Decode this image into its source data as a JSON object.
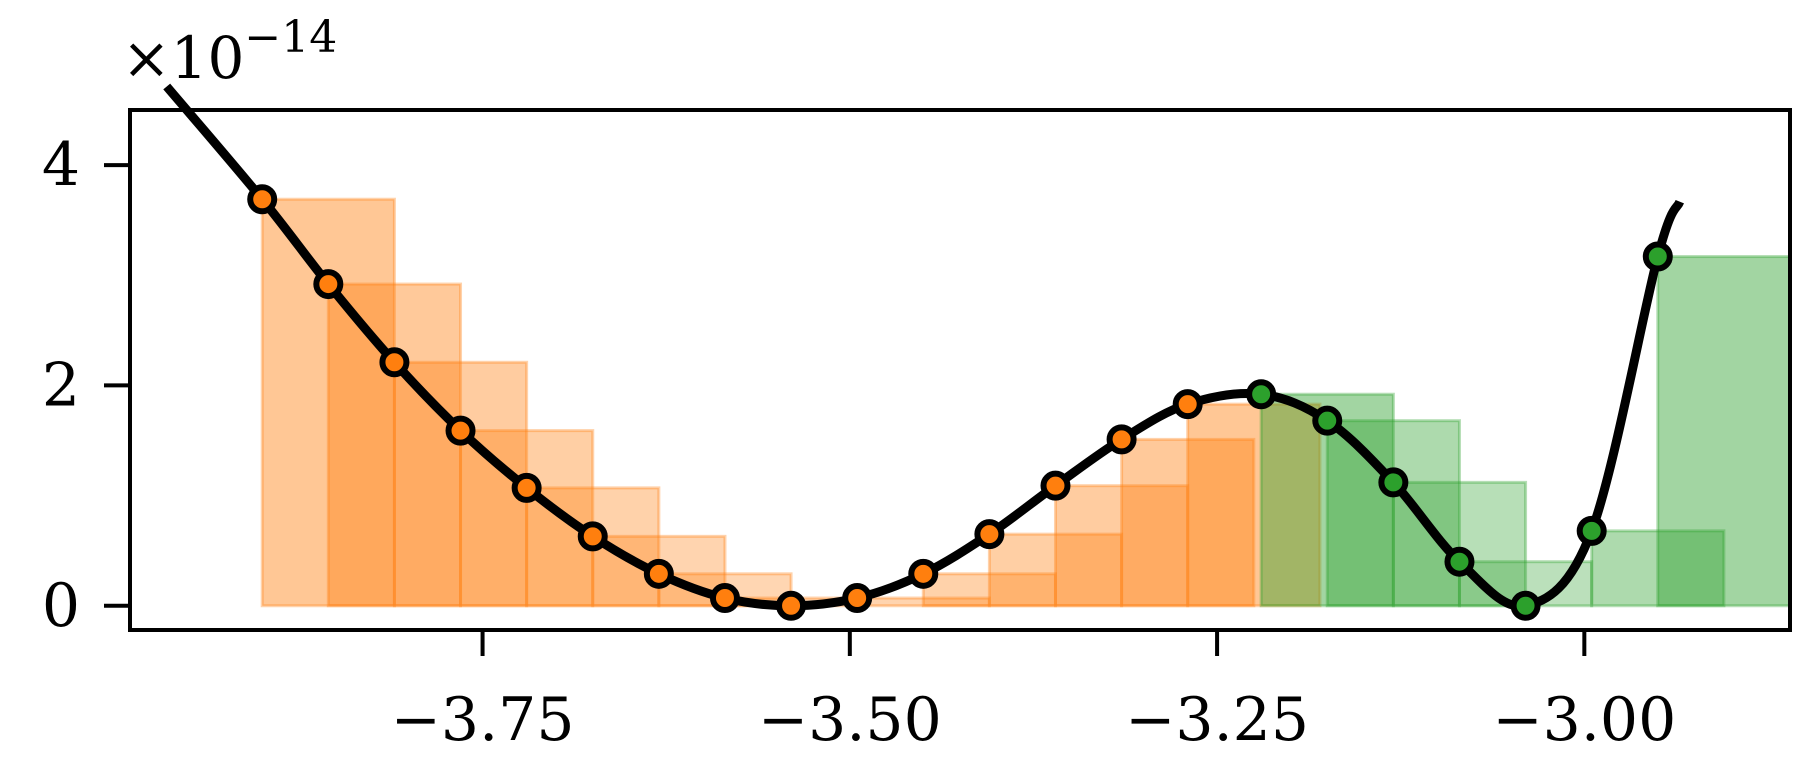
{
  "chart_data": {
    "type": "line",
    "title": "",
    "xlabel": "",
    "ylabel": "",
    "y_offset_text": "×10",
    "y_offset_exponent": "−14",
    "xlim": [
      -3.99,
      -2.86
    ],
    "ylim": [
      -0.22,
      4.5
    ],
    "x_ticks": [
      {
        "value": -3.75,
        "label": "−3.75"
      },
      {
        "value": -3.5,
        "label": "−3.50"
      },
      {
        "value": -3.25,
        "label": "−3.25"
      },
      {
        "value": -3.0,
        "label": "−3.00"
      }
    ],
    "y_ticks": [
      {
        "value": 0,
        "label": "0"
      },
      {
        "value": 2,
        "label": "2"
      },
      {
        "value": 4,
        "label": "4"
      }
    ],
    "grid": false,
    "colors": {
      "curve": "#000000",
      "orange": "#ff7f0e",
      "green": "#2ca02c"
    },
    "series": [
      {
        "color": "orange",
        "points": [
          {
            "x": -3.9,
            "y": 3.69
          },
          {
            "x": -3.855,
            "y": 2.92
          },
          {
            "x": -3.81,
            "y": 2.21
          },
          {
            "x": -3.765,
            "y": 1.59
          },
          {
            "x": -3.72,
            "y": 1.07
          },
          {
            "x": -3.675,
            "y": 0.63
          },
          {
            "x": -3.63,
            "y": 0.29
          },
          {
            "x": -3.585,
            "y": 0.07
          },
          {
            "x": -3.54,
            "y": 0.0
          },
          {
            "x": -3.495,
            "y": 0.07
          },
          {
            "x": -3.45,
            "y": 0.29
          },
          {
            "x": -3.405,
            "y": 0.65
          },
          {
            "x": -3.36,
            "y": 1.09
          },
          {
            "x": -3.315,
            "y": 1.51
          },
          {
            "x": -3.27,
            "y": 1.83
          }
        ]
      },
      {
        "color": "green",
        "points": [
          {
            "x": -3.22,
            "y": 1.92
          },
          {
            "x": -3.175,
            "y": 1.68
          },
          {
            "x": -3.13,
            "y": 1.12
          },
          {
            "x": -3.085,
            "y": 0.4
          },
          {
            "x": -3.04,
            "y": 0.0
          },
          {
            "x": -2.995,
            "y": 0.68
          },
          {
            "x": -2.95,
            "y": 3.17
          }
        ]
      }
    ]
  }
}
